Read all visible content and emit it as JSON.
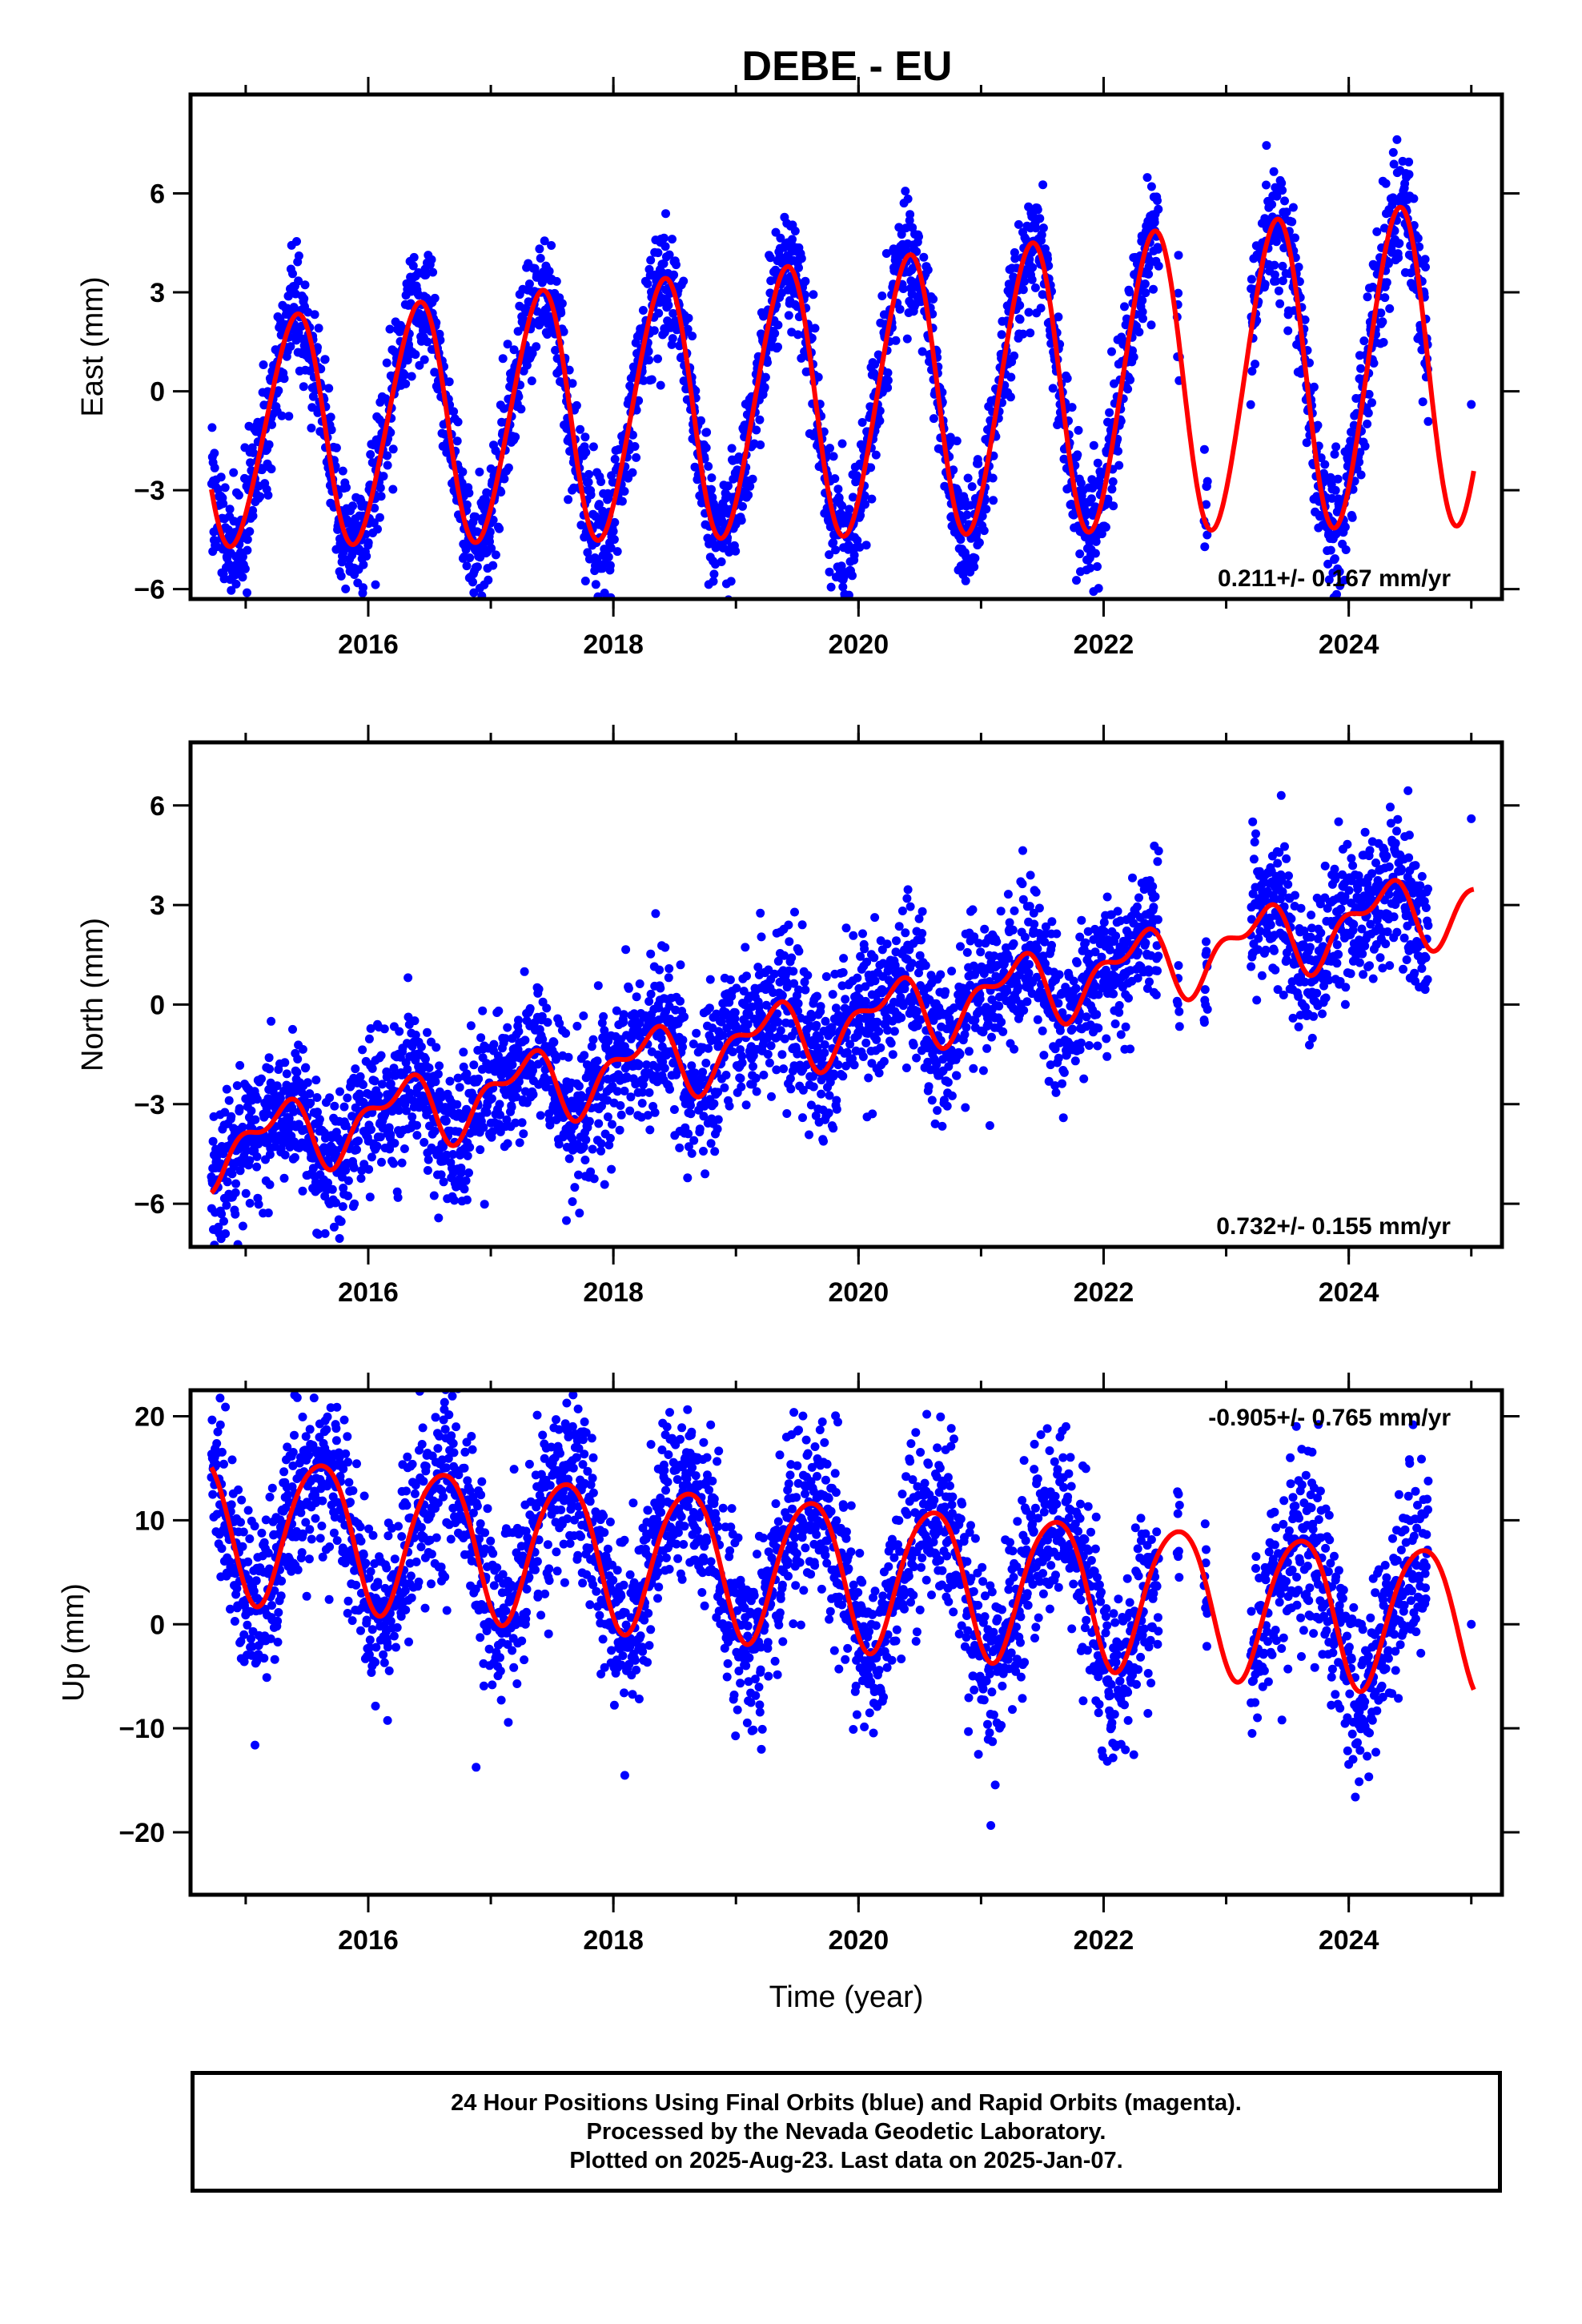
{
  "title": "DEBE - EU",
  "footer": {
    "line1": "24 Hour Positions Using Final Orbits (blue) and Rapid Orbits (magenta).",
    "line2": "Processed by the Nevada Geodetic Laboratory.",
    "line3": "Plotted on 2025-Aug-23. Last data on 2025-Jan-07."
  },
  "colors": {
    "points": "#0000ff",
    "model": "#ff0000",
    "frame": "#000000"
  },
  "chart_data": [
    {
      "type": "scatter",
      "ylabel": "East (mm)",
      "xlabel": "",
      "xlim": [
        2014.55,
        2025.25
      ],
      "ylim": [
        -6.3,
        9.0
      ],
      "xticks": [
        2016,
        2018,
        2020,
        2022,
        2024
      ],
      "xtick_labels": [
        "2016",
        "2018",
        "2020",
        "2022",
        "2024"
      ],
      "yticks": [
        -6,
        -3,
        0,
        3,
        6
      ],
      "ytick_labels": [
        "−6",
        "−3",
        "0",
        "3",
        "6"
      ],
      "rate": "0.211+/- 0.167 mm/yr",
      "rate_position": "bottom-right",
      "model": {
        "offset": -0.2,
        "trend": 0.211,
        "amp1": 3.4,
        "amp1_growth": 0.15,
        "phase1": 0.15,
        "amp2": 0.3,
        "phase2": 0.4,
        "scatter": 0.9
      },
      "series": [
        {
          "role": "final-orbits",
          "data_ranges": [
            [
              2014.72,
              2022.45
            ],
            [
              2022.6,
              2022.62
            ],
            [
              2022.82,
              2022.85
            ],
            [
              2023.2,
              2024.65
            ]
          ],
          "extra_points": [
            [
              2025.0,
              -0.4
            ]
          ]
        },
        {
          "role": "seasonal-model",
          "x_range": [
            2014.72,
            2025.02
          ]
        }
      ]
    },
    {
      "type": "scatter",
      "ylabel": "North (mm)",
      "xlabel": "",
      "xlim": [
        2014.55,
        2025.25
      ],
      "ylim": [
        -7.3,
        7.9
      ],
      "xticks": [
        2016,
        2018,
        2020,
        2022,
        2024
      ],
      "xtick_labels": [
        "2016",
        "2018",
        "2020",
        "2022",
        "2024"
      ],
      "yticks": [
        -6,
        -3,
        0,
        3,
        6
      ],
      "ytick_labels": [
        "−6",
        "−3",
        "0",
        "3",
        "6"
      ],
      "rate": "0.732+/- 0.155 mm/yr",
      "rate_position": "bottom-right",
      "model": {
        "offset": -0.5,
        "trend": 0.732,
        "amp1": 0.9,
        "amp1_growth": 0.0,
        "phase1": 0.0,
        "amp2": 0.5,
        "phase2": 0.3,
        "scatter": 1.1
      },
      "series": [
        {
          "role": "final-orbits",
          "data_ranges": [
            [
              2014.72,
              2022.45
            ],
            [
              2022.6,
              2022.62
            ],
            [
              2022.82,
              2022.85
            ],
            [
              2023.2,
              2024.65
            ]
          ],
          "extra_points": [
            [
              2025.0,
              5.6
            ]
          ]
        },
        {
          "role": "seasonal-model",
          "x_range": [
            2014.72,
            2025.02
          ]
        }
      ]
    },
    {
      "type": "scatter",
      "ylabel": "Up (mm)",
      "xlabel": "Time (year)",
      "xlim": [
        2014.55,
        2025.25
      ],
      "ylim": [
        -26.0,
        22.5
      ],
      "xticks": [
        2016,
        2018,
        2020,
        2022,
        2024
      ],
      "xtick_labels": [
        "2016",
        "2018",
        "2020",
        "2022",
        "2024"
      ],
      "yticks": [
        -20,
        -10,
        0,
        10,
        20
      ],
      "ytick_labels": [
        "−20",
        "−10",
        "0",
        "10",
        "20"
      ],
      "rate": "-0.905+/- 0.765 mm/yr",
      "rate_position": "top-right",
      "model": {
        "offset": 5.0,
        "trend": -0.905,
        "amp1": 7.0,
        "amp1_growth": 0.0,
        "phase1": 0.35,
        "amp2": 0.8,
        "phase2": 0.2,
        "scatter": 4.2
      },
      "series": [
        {
          "role": "final-orbits",
          "data_ranges": [
            [
              2014.72,
              2022.45
            ],
            [
              2022.6,
              2022.62
            ],
            [
              2022.82,
              2022.85
            ],
            [
              2023.2,
              2024.65
            ]
          ],
          "extra_points": [
            [
              2025.0,
              0.0
            ]
          ]
        },
        {
          "role": "seasonal-model",
          "x_range": [
            2014.72,
            2025.02
          ]
        }
      ]
    }
  ]
}
